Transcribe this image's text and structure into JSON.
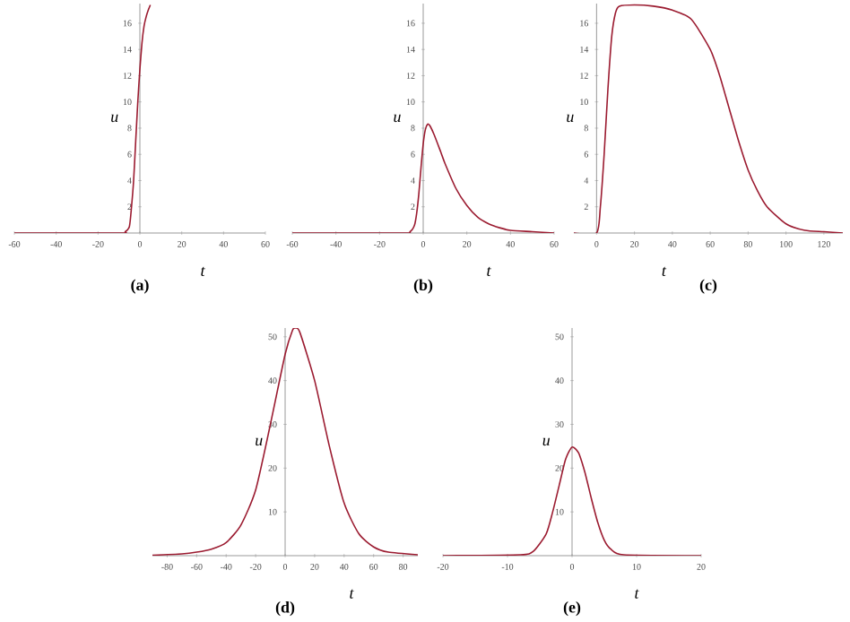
{
  "chart_data": [
    {
      "type": "line",
      "title": "(a)",
      "xlabel": "t",
      "ylabel": "u",
      "color": "#9b1b30",
      "xlim": [
        -60,
        60
      ],
      "ylim": [
        0,
        17.5
      ],
      "xticks": [
        -60,
        -40,
        -20,
        0,
        20,
        40,
        60
      ],
      "yticks": [
        2,
        4,
        6,
        8,
        10,
        12,
        14,
        16
      ],
      "x": [
        -60,
        -10,
        -7,
        -5,
        -4,
        -3,
        -2,
        -1,
        0,
        1,
        2,
        3,
        4,
        5
      ],
      "values": [
        0,
        0,
        0.1,
        0.5,
        2,
        4,
        7,
        10,
        12.5,
        14.5,
        15.8,
        16.5,
        17,
        17.4
      ]
    },
    {
      "type": "line",
      "title": "(b)",
      "xlabel": "t",
      "ylabel": "u",
      "color": "#9b1b30",
      "xlim": [
        -60,
        60
      ],
      "ylim": [
        0,
        17.5
      ],
      "xticks": [
        -60,
        -40,
        -20,
        0,
        20,
        40,
        60
      ],
      "yticks": [
        2,
        4,
        6,
        8,
        10,
        12,
        14,
        16
      ],
      "x": [
        -60,
        -10,
        -6,
        -4,
        -3,
        -2,
        -1,
        0,
        1,
        2,
        3,
        5,
        8,
        10,
        15,
        20,
        25,
        30,
        35,
        40,
        50,
        60
      ],
      "values": [
        0,
        0,
        0.1,
        0.6,
        1.5,
        3,
        5,
        6.8,
        7.9,
        8.3,
        8.2,
        7.5,
        6.2,
        5.3,
        3.4,
        2.1,
        1.2,
        0.7,
        0.4,
        0.2,
        0.1,
        0
      ]
    },
    {
      "type": "line",
      "title": "(c)",
      "xlabel": "t",
      "ylabel": "u",
      "color": "#9b1b30",
      "xlim": [
        -12,
        130
      ],
      "ylim": [
        0,
        17.5
      ],
      "xticks": [
        0,
        20,
        40,
        60,
        80,
        100,
        120
      ],
      "yticks": [
        2,
        4,
        6,
        8,
        10,
        12,
        14,
        16
      ],
      "x": [
        -12,
        0,
        2,
        4,
        6,
        8,
        10,
        12,
        20,
        30,
        40,
        50,
        60,
        65,
        70,
        75,
        80,
        85,
        90,
        100,
        110,
        120,
        130
      ],
      "values": [
        0,
        0,
        2,
        6,
        11,
        15,
        16.8,
        17.3,
        17.4,
        17.3,
        17,
        16.3,
        14,
        12,
        9.5,
        7,
        4.8,
        3.2,
        2,
        0.7,
        0.2,
        0.1,
        0
      ]
    },
    {
      "type": "line",
      "title": "(d)",
      "xlabel": "t",
      "ylabel": "u",
      "color": "#9b1b30",
      "xlim": [
        -90,
        90
      ],
      "ylim": [
        0,
        52
      ],
      "xticks": [
        -80,
        -60,
        -40,
        -20,
        0,
        20,
        40,
        60,
        80
      ],
      "yticks": [
        10,
        20,
        30,
        40,
        50
      ],
      "x": [
        -90,
        -70,
        -60,
        -50,
        -40,
        -30,
        -20,
        -10,
        0,
        5,
        7,
        10,
        20,
        30,
        40,
        50,
        60,
        70,
        90
      ],
      "values": [
        0.1,
        0.4,
        0.8,
        1.5,
        3,
        7,
        15,
        30,
        46,
        51.5,
        52,
        51,
        40,
        25,
        12,
        5,
        2,
        0.8,
        0.2
      ]
    },
    {
      "type": "line",
      "title": "(e)",
      "xlabel": "t",
      "ylabel": "u",
      "color": "#9b1b30",
      "xlim": [
        -20,
        20
      ],
      "ylim": [
        0,
        52
      ],
      "xticks": [
        -20,
        -10,
        0,
        10,
        20
      ],
      "yticks": [
        10,
        20,
        30,
        40,
        50
      ],
      "x": [
        -20,
        -8,
        -6,
        -4,
        -3,
        -2,
        -1,
        0,
        1,
        2,
        3,
        4,
        5,
        6,
        8,
        20
      ],
      "values": [
        0,
        0.2,
        1,
        5,
        10,
        16,
        22,
        24.8,
        23.5,
        19,
        13,
        7.5,
        3.5,
        1.5,
        0.2,
        0
      ]
    }
  ]
}
